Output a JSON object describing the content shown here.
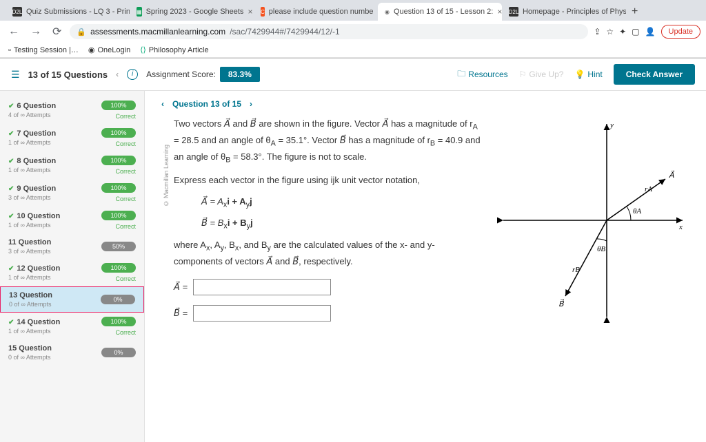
{
  "browser": {
    "tabs": [
      {
        "icon_bg": "#333",
        "icon_text": "D2L",
        "label": "Quiz Submissions - LQ 3 - Prin"
      },
      {
        "icon_bg": "#0f9d58",
        "icon_text": "▦",
        "label": "Spring 2023 - Google Sheets"
      },
      {
        "icon_bg": "#f4511e",
        "icon_text": "C",
        "label": "please include question numbe"
      },
      {
        "icon_bg": "#fff",
        "icon_text": "◉",
        "label": "Question 13 of 15 - Lesson 2:",
        "active": true
      },
      {
        "icon_bg": "#333",
        "icon_text": "D2L",
        "label": "Homepage - Principles of Phys"
      }
    ],
    "url_host": "assessments.macmillanlearning.com",
    "url_path": "/sac/7429944#/7429944/12/-1",
    "update": "Update",
    "bookmarks": [
      "Testing Session |…",
      "OneLogin",
      "Philosophy Article"
    ]
  },
  "header": {
    "count": "13 of 15 Questions",
    "score_label": "Assignment Score:",
    "score": "83.3%",
    "resources": "Resources",
    "giveup": "Give Up?",
    "hint": "Hint",
    "check": "Check Answer"
  },
  "sidebar": {
    "items": [
      {
        "n": "6 Question",
        "attempts": "4 of ∞ Attempts",
        "badge": "100%",
        "status": "Correct",
        "check": true
      },
      {
        "n": "7 Question",
        "attempts": "1 of ∞ Attempts",
        "badge": "100%",
        "status": "Correct",
        "check": true
      },
      {
        "n": "8 Question",
        "attempts": "1 of ∞ Attempts",
        "badge": "100%",
        "status": "Correct",
        "check": true
      },
      {
        "n": "9 Question",
        "attempts": "3 of ∞ Attempts",
        "badge": "100%",
        "status": "Correct",
        "check": true
      },
      {
        "n": "10 Question",
        "attempts": "1 of ∞ Attempts",
        "badge": "100%",
        "status": "Correct",
        "check": true
      },
      {
        "n": "11 Question",
        "attempts": "3 of ∞ Attempts",
        "badge": "50%",
        "status": "",
        "check": false,
        "gray": true
      },
      {
        "n": "12 Question",
        "attempts": "1 of ∞ Attempts",
        "badge": "100%",
        "status": "Correct",
        "check": true
      },
      {
        "n": "13 Question",
        "attempts": "0 of ∞ Attempts",
        "badge": "0%",
        "status": "",
        "check": false,
        "gray": true,
        "current": true
      },
      {
        "n": "14 Question",
        "attempts": "1 of ∞ Attempts",
        "badge": "100%",
        "status": "Correct",
        "check": true
      },
      {
        "n": "15 Question",
        "attempts": "0 of ∞ Attempts",
        "badge": "0%",
        "status": "",
        "check": false,
        "gray": true
      }
    ]
  },
  "question": {
    "nav": "Question 13 of 15",
    "copyright": "© Macmillan Learning",
    "p1_a": "Two vectors ",
    "p1_b": " and ",
    "p1_c": " are shown in the figure. Vector ",
    "p1_d": " has a magnitude of r",
    "p1_e": " = 28.5 and an angle of θ",
    "p1_f": " = 35.1°. Vector ",
    "p1_g": " has a magnitude of r",
    "p1_h": " = 40.9 and an angle of θ",
    "p1_i": " = 58.3°. The figure is not to scale.",
    "p2": "Express each vector in the figure using ijk unit vector notation,",
    "eq1_a": "A⃗ = A",
    "eq1_b": "i + A",
    "eq1_c": "j",
    "eq2_a": "B⃗ = B",
    "eq2_b": "i + B",
    "eq2_c": "j",
    "p3_a": "where A",
    "p3_b": ", A",
    "p3_c": ", B",
    "p3_d": ", and B",
    "p3_e": " are the calculated values of the x- and y-components of vectors ",
    "p3_f": " and ",
    "p3_g": ", respectively.",
    "input_a_label": "A⃗ =",
    "input_b_label": "B⃗ =",
    "figure": {
      "labels": {
        "y": "y",
        "x": "x",
        "A": "A⃗",
        "B": "B⃗",
        "rA": "rA",
        "rB": "rB",
        "thA": "θA",
        "thB": "θB"
      }
    }
  }
}
